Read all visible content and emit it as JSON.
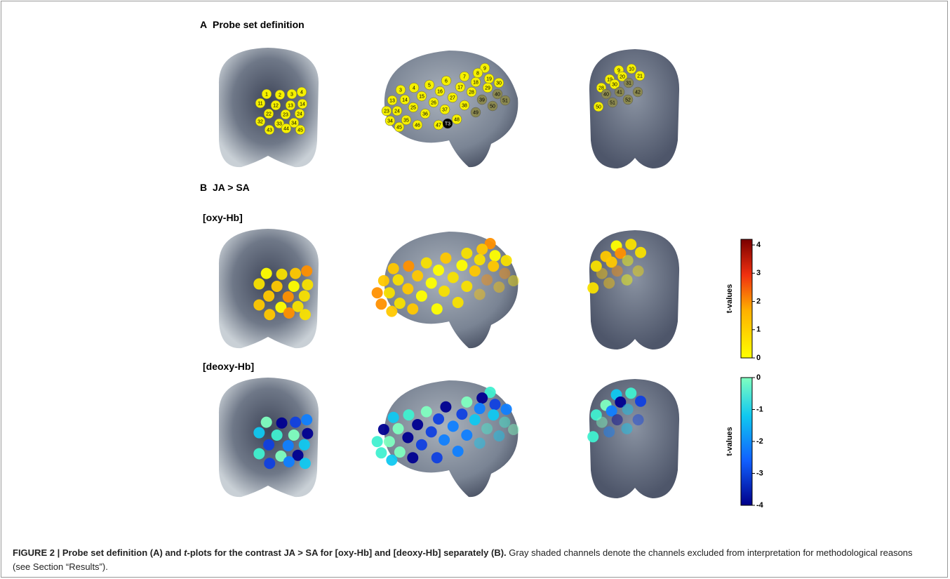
{
  "panel_a": {
    "letter": "A",
    "title": "Probe set definition",
    "views": [
      {
        "channels": [
          "1",
          "2",
          "3",
          "4",
          "11",
          "12",
          "13",
          "14",
          "22",
          "23",
          "24",
          "32",
          "33",
          "34",
          "43",
          "44",
          "45"
        ]
      },
      {
        "channels": [
          "9",
          "7",
          "8",
          "19",
          "30",
          "3",
          "4",
          "5",
          "6",
          "17",
          "18",
          "29",
          "40",
          "14",
          "15",
          "16",
          "27",
          "28",
          "39",
          "51",
          "13",
          "26",
          "38",
          "50",
          "23",
          "24",
          "25",
          "36",
          "37",
          "49",
          "34",
          "35",
          "46",
          "47",
          "48",
          "45",
          "T3"
        ]
      },
      {
        "channels": [
          "9",
          "10",
          "19",
          "20",
          "21",
          "30",
          "31",
          "28",
          "40",
          "41",
          "42",
          "51",
          "52",
          "50"
        ]
      }
    ]
  },
  "panel_b": {
    "letter": "B",
    "title": "JA > SA",
    "rows": [
      {
        "label": "[oxy-Hb]",
        "colorbar": {
          "label": "t-values",
          "range": [
            0,
            4.2
          ],
          "ticks": [
            0,
            1,
            2,
            3,
            4
          ]
        }
      },
      {
        "label": "[deoxy-Hb]",
        "colorbar": {
          "label": "t-values",
          "range": [
            -4,
            0
          ],
          "ticks": [
            -4,
            -3,
            -2,
            -1,
            0
          ]
        }
      }
    ]
  },
  "caption": {
    "bold_start": "FIGURE 2 | Probe set definition (A) and ",
    "bold_italic": "t",
    "bold_end": "-plots for the contrast JA > SA for [oxy-Hb] and [deoxy-Hb] separately (B).",
    "text": " Gray shaded channels denote the channels excluded from interpretation for methodological reasons (see Section “Results”)."
  }
}
